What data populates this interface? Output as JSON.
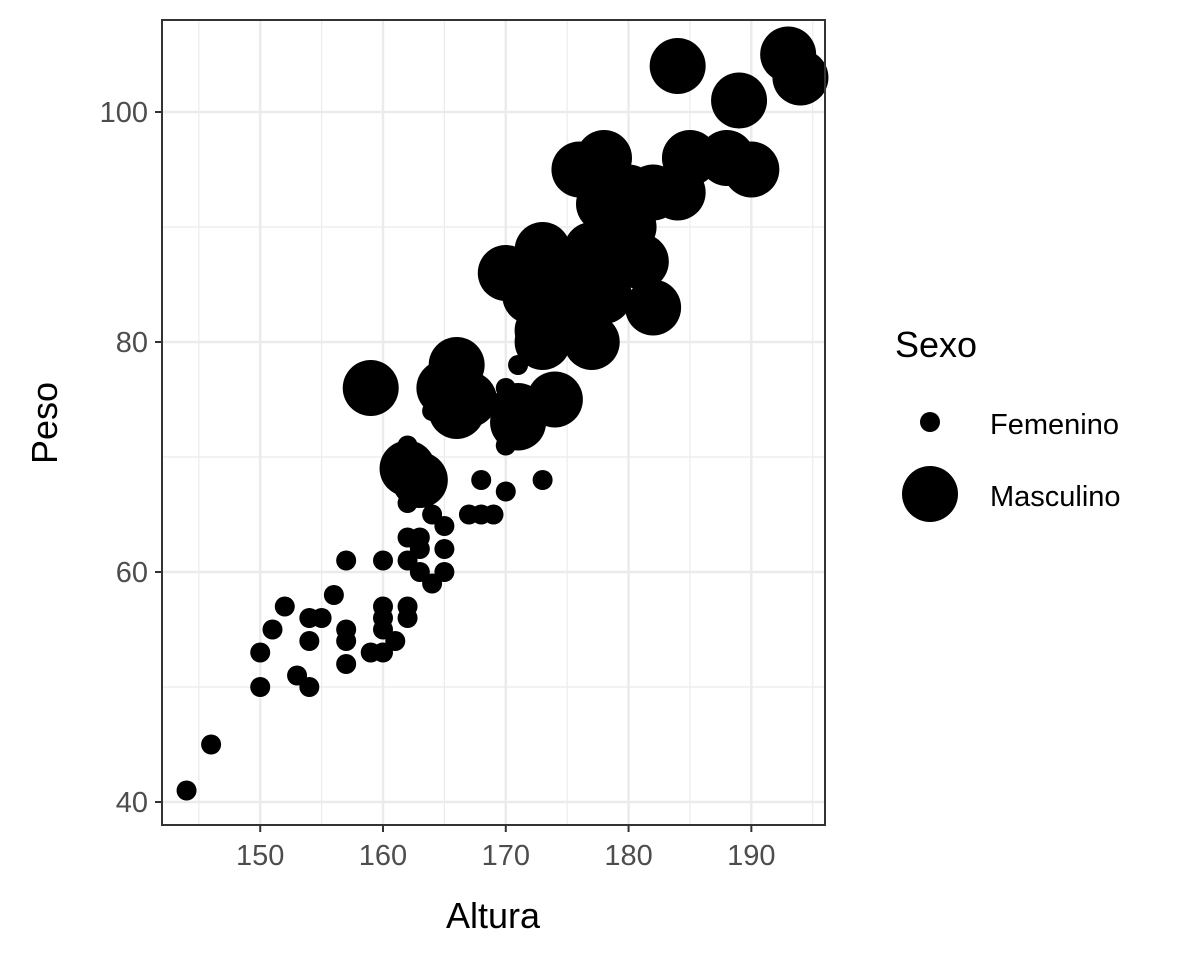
{
  "chart_data": {
    "type": "scatter",
    "xlabel": "Altura",
    "ylabel": "Peso",
    "xlim": [
      142,
      196
    ],
    "ylim": [
      38,
      108
    ],
    "x_ticks": [
      150,
      160,
      170,
      180,
      190
    ],
    "y_ticks": [
      40,
      60,
      80,
      100
    ],
    "x_tick_labels": [
      "150",
      "160",
      "170",
      "180",
      "190"
    ],
    "y_tick_labels": [
      "40",
      "60",
      "80",
      "100"
    ],
    "grid": true,
    "legend": {
      "title": "Sexo",
      "position": "right",
      "entries": [
        "Femenino",
        "Masculino"
      ]
    },
    "marker_color": "#000000",
    "series": [
      {
        "name": "Femenino",
        "size": "small",
        "points": [
          [
            144,
            41
          ],
          [
            146,
            45
          ],
          [
            150,
            50
          ],
          [
            150,
            53
          ],
          [
            151,
            55
          ],
          [
            152,
            57
          ],
          [
            153,
            51
          ],
          [
            154,
            50
          ],
          [
            154,
            54
          ],
          [
            154,
            56
          ],
          [
            155,
            56
          ],
          [
            156,
            58
          ],
          [
            157,
            52
          ],
          [
            157,
            54
          ],
          [
            157,
            55
          ],
          [
            157,
            61
          ],
          [
            159,
            53
          ],
          [
            160,
            53
          ],
          [
            160,
            55
          ],
          [
            160,
            56
          ],
          [
            160,
            57
          ],
          [
            160,
            61
          ],
          [
            161,
            54
          ],
          [
            162,
            56
          ],
          [
            162,
            57
          ],
          [
            162,
            61
          ],
          [
            162,
            63
          ],
          [
            162,
            66
          ],
          [
            162,
            71
          ],
          [
            163,
            60
          ],
          [
            163,
            62
          ],
          [
            163,
            63
          ],
          [
            164,
            59
          ],
          [
            164,
            65
          ],
          [
            164,
            74
          ],
          [
            165,
            60
          ],
          [
            165,
            62
          ],
          [
            165,
            64
          ],
          [
            167,
            65
          ],
          [
            168,
            65
          ],
          [
            168,
            68
          ],
          [
            169,
            65
          ],
          [
            170,
            67
          ],
          [
            170,
            71
          ],
          [
            170,
            72
          ],
          [
            170,
            76
          ],
          [
            171,
            78
          ],
          [
            173,
            68
          ]
        ]
      },
      {
        "name": "Masculino",
        "size": "large",
        "points": [
          [
            159,
            76
          ],
          [
            162,
            69
          ],
          [
            163,
            68
          ],
          [
            165,
            76
          ],
          [
            166,
            78
          ],
          [
            166,
            74
          ],
          [
            167,
            75
          ],
          [
            171,
            74
          ],
          [
            171,
            73
          ],
          [
            170,
            86
          ],
          [
            172,
            84
          ],
          [
            173,
            88
          ],
          [
            173,
            81
          ],
          [
            173,
            80
          ],
          [
            174,
            75
          ],
          [
            175,
            86
          ],
          [
            175,
            83
          ],
          [
            176,
            95
          ],
          [
            177,
            88
          ],
          [
            177,
            80
          ],
          [
            178,
            96
          ],
          [
            178,
            92
          ],
          [
            178,
            84
          ],
          [
            179,
            88
          ],
          [
            180,
            90
          ],
          [
            180,
            93
          ],
          [
            181,
            87
          ],
          [
            182,
            93
          ],
          [
            182,
            83
          ],
          [
            184,
            104
          ],
          [
            184,
            93
          ],
          [
            185,
            96
          ],
          [
            188,
            96
          ],
          [
            189,
            101
          ],
          [
            190,
            95
          ],
          [
            193,
            105
          ],
          [
            194,
            103
          ]
        ]
      }
    ]
  }
}
